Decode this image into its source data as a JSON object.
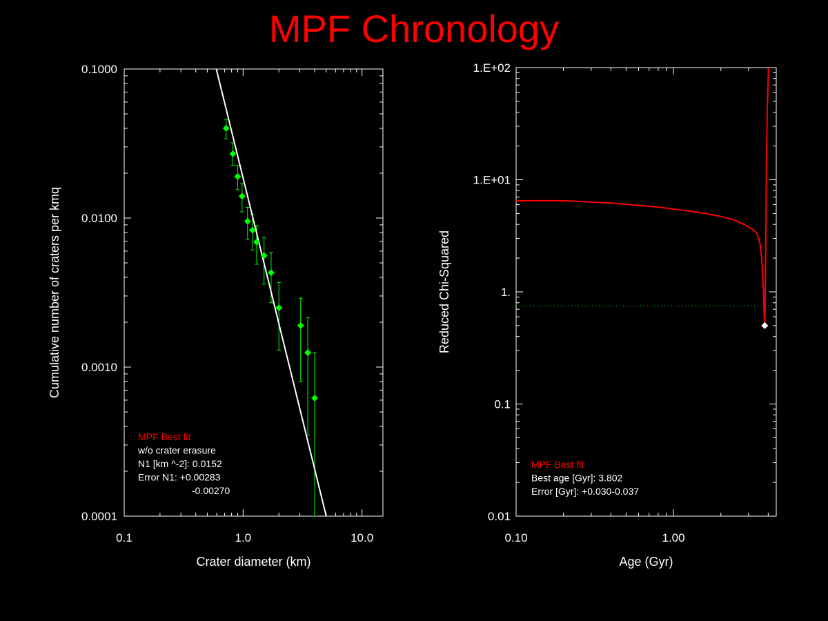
{
  "title": "MPF Chronology",
  "colors": {
    "background": "#000000",
    "axes": "#ffffff",
    "title": "#ff0000",
    "data": "#00ff00",
    "fit_line": "#ffffff",
    "chisq_curve": "#ff0000",
    "legend_heading": "#ff0000"
  },
  "chart_data": [
    {
      "type": "scatter",
      "xlabel": "Crater diameter (km)",
      "ylabel": "Cumulative number of craters per kmq",
      "xscale": "log",
      "yscale": "log",
      "xlim": [
        0.1,
        15
      ],
      "ylim": [
        0.0001,
        0.1
      ],
      "xticks": [
        0.1,
        1.0,
        10.0
      ],
      "xtick_labels": [
        "0.1",
        "1.0",
        "10.0"
      ],
      "yticks": [
        0.0001,
        0.001,
        0.01,
        0.1
      ],
      "ytick_labels": [
        "0.0001",
        "0.0010",
        "0.0100",
        "0.1000"
      ],
      "grid": false,
      "series": [
        {
          "type": "scatter",
          "color": "#00ff00",
          "marker": "diamond",
          "points": [
            {
              "x": 0.72,
              "y": 0.04,
              "ylo": 0.034,
              "yhi": 0.046
            },
            {
              "x": 0.82,
              "y": 0.027,
              "ylo": 0.0225,
              "yhi": 0.032
            },
            {
              "x": 0.9,
              "y": 0.019,
              "ylo": 0.0155,
              "yhi": 0.0225
            },
            {
              "x": 0.98,
              "y": 0.014,
              "ylo": 0.011,
              "yhi": 0.017
            },
            {
              "x": 1.09,
              "y": 0.0095,
              "ylo": 0.0072,
              "yhi": 0.0118
            },
            {
              "x": 1.2,
              "y": 0.0083,
              "ylo": 0.0061,
              "yhi": 0.0105
            },
            {
              "x": 1.3,
              "y": 0.0069,
              "ylo": 0.0049,
              "yhi": 0.0089
            },
            {
              "x": 1.5,
              "y": 0.0056,
              "ylo": 0.0036,
              "yhi": 0.0074
            },
            {
              "x": 1.72,
              "y": 0.0043,
              "ylo": 0.0027,
              "yhi": 0.0059
            },
            {
              "x": 2.0,
              "y": 0.0025,
              "ylo": 0.0013,
              "yhi": 0.0037
            },
            {
              "x": 3.05,
              "y": 0.0019,
              "ylo": 0.0008,
              "yhi": 0.0029
            },
            {
              "x": 3.5,
              "y": 0.00125,
              "ylo": 0.00035,
              "yhi": 0.00215
            },
            {
              "x": 4.0,
              "y": 0.00062,
              "ylo": 0.0001,
              "yhi": 0.00125
            }
          ]
        },
        {
          "type": "line",
          "color": "#ffffff",
          "points": [
            {
              "x": 0.595,
              "y": 0.1
            },
            {
              "x": 5.0,
              "y": 0.0001
            }
          ]
        }
      ],
      "legend": {
        "heading": "MPF Best fit",
        "lines": [
          "w/o crater erasure",
          "N1 [km ^-2]: 0.0152",
          "Error N1: +0.00283",
          "-0.00270"
        ]
      }
    },
    {
      "type": "line",
      "xlabel": "Age (Gyr)",
      "ylabel": "Reduced Chi-Squared",
      "xscale": "log",
      "yscale": "log",
      "xlim": [
        0.1,
        4.5
      ],
      "ylim": [
        0.01,
        100
      ],
      "xticks": [
        0.1,
        1.0
      ],
      "xtick_labels": [
        "0.10",
        "1.00"
      ],
      "yticks": [
        0.01,
        0.1,
        1,
        10,
        100
      ],
      "ytick_labels": [
        "0.01",
        "0.1",
        "1.",
        "1.E+01",
        "1.E+02"
      ],
      "grid": false,
      "reference_line": {
        "y": 0.75,
        "style": "dotted",
        "color": "#00ff00"
      },
      "series": [
        {
          "type": "line",
          "color": "#ff0000",
          "x": [
            0.1,
            0.2,
            0.4,
            0.8,
            1.2,
            1.6,
            2.0,
            2.4,
            2.8,
            3.2,
            3.4,
            3.55,
            3.65,
            3.72,
            3.76,
            3.8,
            3.82,
            3.84,
            3.87,
            3.9,
            3.95,
            4.0,
            4.02
          ],
          "y": [
            6.5,
            6.5,
            6.2,
            5.7,
            5.3,
            5.0,
            4.7,
            4.4,
            4.0,
            3.6,
            3.3,
            2.7,
            1.9,
            1.1,
            0.7,
            0.5,
            0.7,
            1.3,
            4.0,
            15,
            45,
            80,
            100
          ]
        },
        {
          "type": "scatter",
          "color": "#ffffff",
          "marker": "diamond",
          "points": [
            {
              "x": 3.802,
              "y": 0.5
            }
          ]
        }
      ],
      "legend": {
        "heading": "MPF Best fit",
        "lines": [
          "Best age [Gyr]: 3.802",
          "Error [Gyr]: +0.030-0.037"
        ]
      }
    }
  ]
}
